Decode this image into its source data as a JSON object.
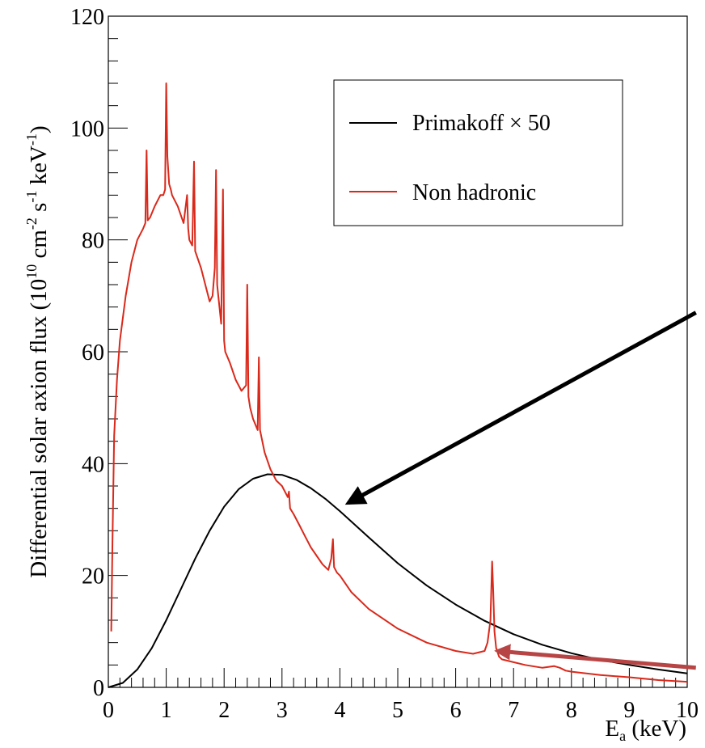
{
  "chart_data": {
    "type": "line",
    "title": "",
    "ylabel": "Differential solar axion flux (10^10 cm^-2 s^-1 keV^-1)",
    "ylabel_parts": {
      "pre": "Differential solar axion flux (10",
      "exp1": "10",
      "mid1": " cm",
      "exp2": "-2",
      "mid2": " s",
      "exp3": "-1",
      "mid3": " keV",
      "exp4": "-1",
      "post": ")"
    },
    "xlabel": "E_a (keV)",
    "xlabel_parts": {
      "main": "E",
      "sub": "a",
      "post": " (keV)"
    },
    "xlim": [
      0,
      10
    ],
    "ylim": [
      0,
      120
    ],
    "x_ticks": [
      0,
      1,
      2,
      3,
      4,
      5,
      6,
      7,
      8,
      9,
      10
    ],
    "y_ticks": [
      0,
      20,
      40,
      60,
      80,
      100,
      120
    ],
    "x_tick_labels": [
      "0",
      "1",
      "2",
      "3",
      "4",
      "5",
      "6",
      "7",
      "8",
      "9",
      "10"
    ],
    "y_tick_labels": [
      "0",
      "20",
      "40",
      "60",
      "80",
      "100",
      "120"
    ],
    "x_minor_step": 0.2,
    "y_minor_step": 4,
    "grid": false,
    "legend_position": "top-right",
    "series": [
      {
        "name": "Primakoff × 50",
        "color": "#000000",
        "x": [
          0,
          0.25,
          0.5,
          0.75,
          1.0,
          1.25,
          1.5,
          1.75,
          2.0,
          2.25,
          2.5,
          2.75,
          3.0,
          3.25,
          3.5,
          3.75,
          4.0,
          4.5,
          5.0,
          5.5,
          6.0,
          6.5,
          7.0,
          7.5,
          8.0,
          8.5,
          9.0,
          9.5,
          10.0
        ],
        "y": [
          0,
          0.8,
          3.2,
          7.0,
          12.0,
          17.5,
          23.0,
          28.0,
          32.3,
          35.4,
          37.3,
          38.1,
          38.0,
          37.1,
          35.6,
          33.7,
          31.5,
          26.8,
          22.2,
          18.2,
          14.8,
          11.9,
          9.5,
          7.6,
          6.1,
          4.9,
          4.0,
          3.2,
          2.5
        ]
      },
      {
        "name": "Non hadronic",
        "color": "#d9291b",
        "x": [
          0.05,
          0.07,
          0.1,
          0.15,
          0.2,
          0.3,
          0.4,
          0.5,
          0.6,
          0.64,
          0.66,
          0.68,
          0.72,
          0.8,
          0.9,
          0.95,
          0.98,
          1.0,
          1.02,
          1.05,
          1.08,
          1.1,
          1.2,
          1.3,
          1.36,
          1.38,
          1.4,
          1.45,
          1.48,
          1.5,
          1.6,
          1.7,
          1.75,
          1.8,
          1.84,
          1.86,
          1.88,
          1.9,
          1.95,
          1.98,
          2.0,
          2.02,
          2.1,
          2.2,
          2.3,
          2.38,
          2.4,
          2.42,
          2.45,
          2.5,
          2.58,
          2.6,
          2.62,
          2.7,
          2.8,
          2.9,
          3.0,
          3.1,
          3.12,
          3.14,
          3.2,
          3.3,
          3.4,
          3.5,
          3.6,
          3.7,
          3.8,
          3.85,
          3.88,
          3.9,
          3.95,
          4.0,
          4.2,
          4.5,
          5.0,
          5.5,
          6.0,
          6.3,
          6.5,
          6.55,
          6.6,
          6.63,
          6.65,
          6.67,
          6.7,
          6.75,
          6.8,
          7.0,
          7.2,
          7.5,
          7.7,
          7.8,
          7.9,
          8.0,
          8.5,
          9.0,
          9.5,
          10.0
        ],
        "y": [
          10,
          25,
          45,
          55,
          62,
          70,
          76,
          80,
          82,
          83,
          96,
          83.5,
          84,
          86,
          88,
          88,
          89,
          108,
          95,
          90,
          89,
          88,
          86,
          83,
          88,
          82,
          80,
          79,
          94,
          78,
          75,
          71,
          69,
          70,
          75,
          92.5,
          72,
          70,
          65,
          89,
          62,
          60,
          58,
          55,
          53,
          54,
          72,
          52,
          50,
          48,
          46,
          59,
          46,
          42,
          39,
          37,
          36,
          34,
          35,
          32,
          31,
          29,
          27,
          25,
          23.5,
          22,
          21,
          23,
          26.5,
          21.5,
          20.5,
          20,
          17,
          14,
          10.5,
          8,
          6.5,
          6,
          6.5,
          8,
          12,
          22.5,
          17,
          10,
          7,
          5.5,
          5,
          4.5,
          4,
          3.5,
          3.8,
          3.5,
          3,
          2.8,
          2.2,
          1.8,
          1.3,
          1.0
        ]
      }
    ],
    "annotations": [
      {
        "type": "arrow",
        "color": "#000000",
        "from": [
          10.15,
          67
        ],
        "to": [
          4.15,
          33
        ]
      },
      {
        "type": "arrow",
        "color": "#b84545",
        "from": [
          10.15,
          3.5
        ],
        "to": [
          6.72,
          6.5
        ]
      }
    ]
  }
}
